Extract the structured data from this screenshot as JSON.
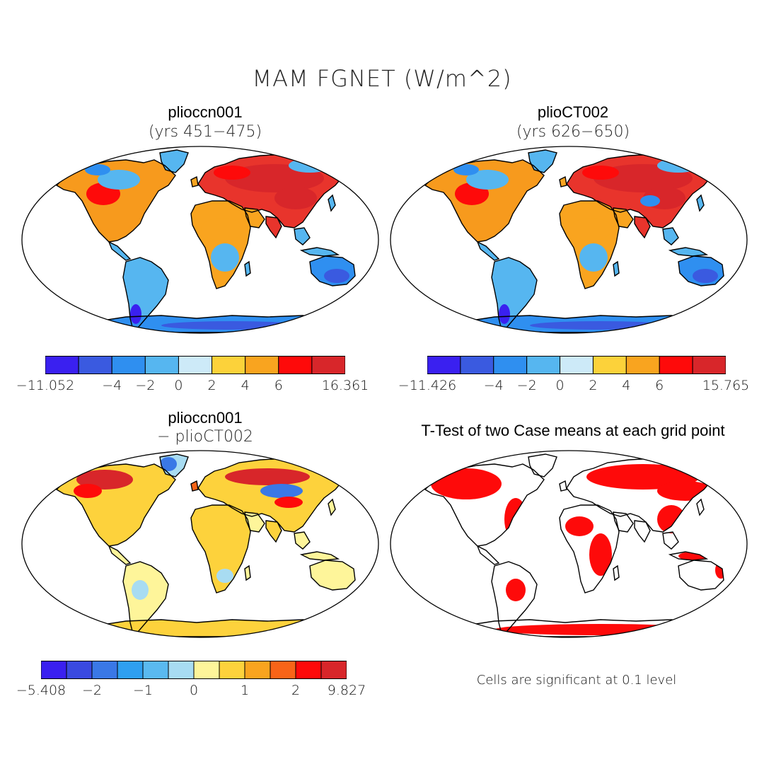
{
  "title": "MAM FGNET (W/m^2)",
  "panels": [
    {
      "id": "p1",
      "title": "plioccn001",
      "subtitle": "(yrs 451−475)",
      "mode": "field"
    },
    {
      "id": "p2",
      "title": "plioCT002",
      "subtitle": "(yrs 626−650)",
      "mode": "field"
    },
    {
      "id": "p3",
      "title": "plioccn001",
      "subtitle": "− plioCT002",
      "mode": "diff"
    },
    {
      "id": "p4",
      "title": "T-Test of two Case means at each grid point",
      "subtitle": "",
      "mode": "ttest"
    }
  ],
  "colorbars": [
    {
      "id": "cb1",
      "colors": [
        "#3a20f0",
        "#3a5ae0",
        "#2f8ff0",
        "#56b6f0",
        "#cdeaf8",
        "#fcd23a",
        "#f9a41f",
        "#fe0a0a",
        "#d8262a"
      ],
      "labels": [
        "−11.052",
        "−4",
        "−2",
        "0",
        "2",
        "4",
        "6",
        "16.361"
      ],
      "label_positions": [
        0,
        2,
        3,
        4,
        5,
        6,
        7,
        9
      ]
    },
    {
      "id": "cb2",
      "colors": [
        "#3a20f0",
        "#3a5ae0",
        "#2f8ff0",
        "#56b6f0",
        "#cdeaf8",
        "#fcd23a",
        "#f9a41f",
        "#fe0a0a",
        "#d8262a"
      ],
      "labels": [
        "−11.426",
        "−4",
        "−2",
        "0",
        "2",
        "4",
        "6",
        "15.765"
      ],
      "label_positions": [
        0,
        2,
        3,
        4,
        5,
        6,
        7,
        9
      ]
    },
    {
      "id": "cb3",
      "colors": [
        "#3a20f0",
        "#3a4ae0",
        "#3a78e6",
        "#2f9ff0",
        "#5ab9f0",
        "#a8dcf2",
        "#fef59a",
        "#fdd23c",
        "#f9a41f",
        "#f86418",
        "#fe0a0a",
        "#d8262a"
      ],
      "labels": [
        "−5.408",
        "−2",
        "−1",
        "0",
        "1",
        "2",
        "9.827"
      ],
      "label_positions": [
        0,
        2,
        4,
        6,
        8,
        10,
        12
      ]
    }
  ],
  "note": "Cells are significant at 0.1 level"
}
